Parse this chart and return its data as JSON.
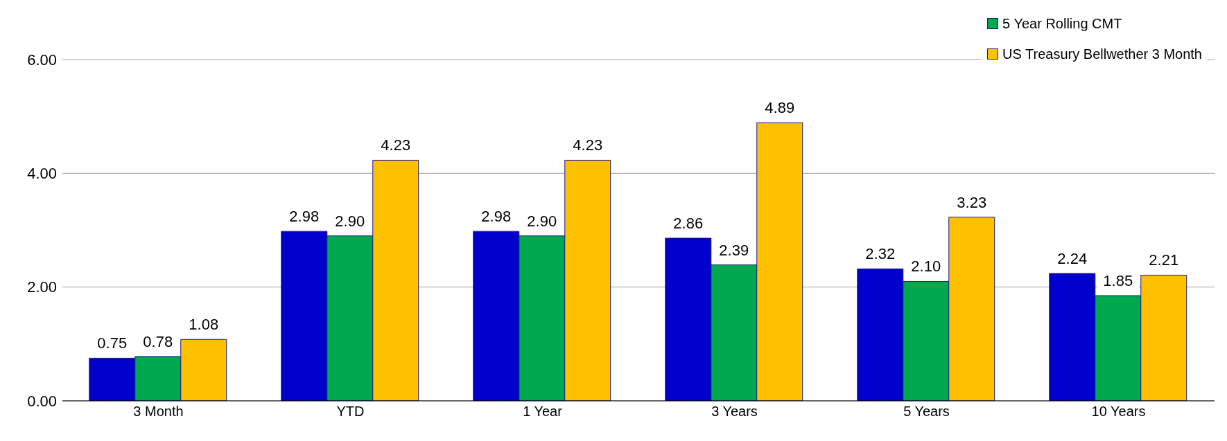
{
  "chart_data": {
    "type": "bar",
    "categories": [
      "3 Month",
      "YTD",
      "1 Year",
      "3 Years",
      "5 Years",
      "10 Years"
    ],
    "series": [
      {
        "color": "#0000cc",
        "values": [
          0.75,
          2.98,
          2.98,
          2.86,
          2.32,
          2.24
        ],
        "value_labels": [
          "0.75",
          "2.98",
          "2.98",
          "2.86",
          "2.32",
          "2.24"
        ]
      },
      {
        "name": "5 Year Rolling CMT",
        "color": "#00a84f",
        "values": [
          0.78,
          2.9,
          2.9,
          2.39,
          2.1,
          1.85
        ],
        "value_labels": [
          "0.78",
          "2.90",
          "2.90",
          "2.39",
          "2.10",
          "1.85"
        ]
      },
      {
        "name": "US Treasury Bellwether 3 Month",
        "color": "#ffc000",
        "values": [
          1.08,
          4.23,
          4.23,
          4.89,
          3.23,
          2.21
        ],
        "value_labels": [
          "1.08",
          "4.23",
          "4.23",
          "4.89",
          "3.23",
          "2.21"
        ]
      }
    ],
    "ylim": [
      0,
      6
    ],
    "yticks": [
      {
        "value": 0,
        "label": "0.00"
      },
      {
        "value": 2,
        "label": "2.00"
      },
      {
        "value": 4,
        "label": "4.00"
      },
      {
        "value": 6,
        "label": "6.00"
      }
    ],
    "grid": "y",
    "legend": "top right"
  }
}
